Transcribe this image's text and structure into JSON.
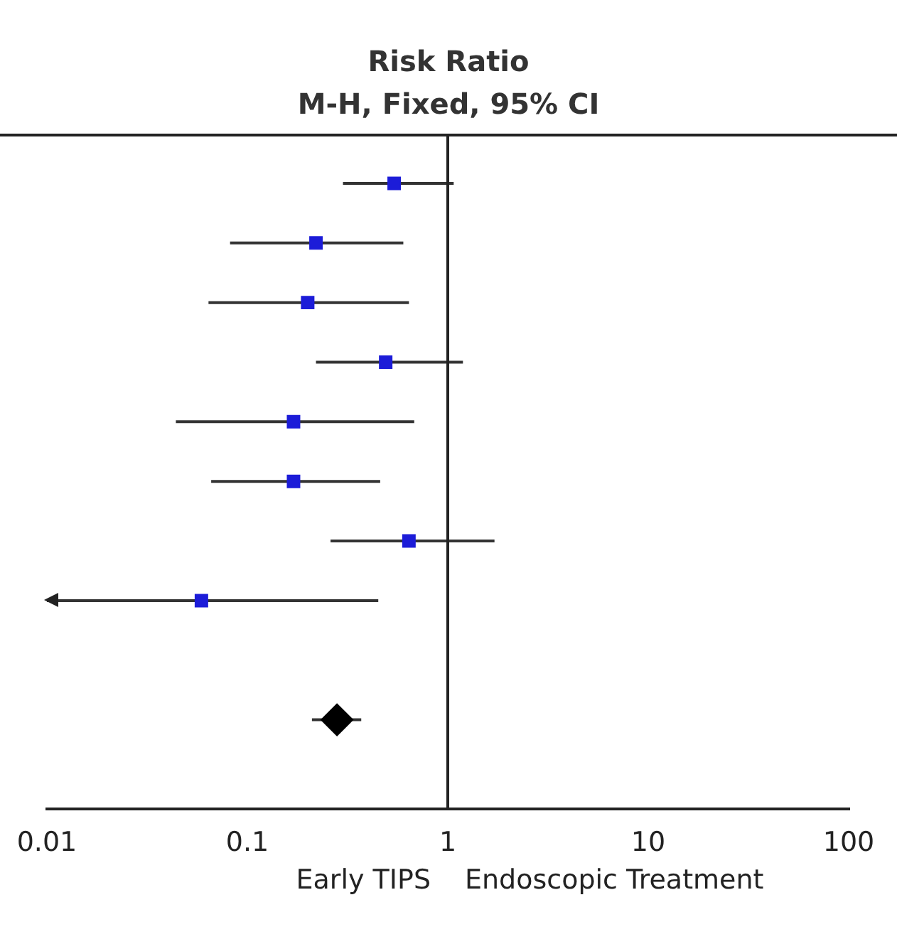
{
  "chart_data": {
    "type": "scatter",
    "title": "Risk Ratio",
    "subtitle": "M-H, Fixed, 95% CI",
    "orientation": "horizontal",
    "categories": [
      null,
      null,
      null,
      null,
      null,
      null,
      null,
      null,
      null,
      null,
      null
    ],
    "series": [
      {
        "color": "#1c1cd8",
        "marker": "square",
        "values": [
          0.54,
          0.22,
          0.2,
          0.49,
          0.17,
          0.17,
          0.64,
          0.059,
          null,
          null,
          null
        ],
        "errors": [
          [
            0.3,
            1.07
          ],
          [
            0.082,
            0.6
          ],
          [
            0.064,
            0.64
          ],
          [
            0.22,
            1.19
          ],
          [
            0.044,
            0.68
          ],
          [
            0.066,
            0.46
          ],
          [
            0.26,
            1.71
          ],
          [
            0.01,
            0.45
          ],
          null,
          null,
          null
        ]
      },
      {
        "color": "#000000",
        "marker": "diamond",
        "values": [
          null,
          null,
          null,
          null,
          null,
          null,
          null,
          null,
          null,
          0.28,
          null
        ],
        "errors": [
          null,
          null,
          null,
          null,
          null,
          null,
          null,
          null,
          null,
          [
            0.21,
            0.37
          ],
          null
        ]
      }
    ],
    "xlim": [
      0.01,
      100
    ],
    "xticks": [
      0.01,
      0.1,
      1,
      10,
      100
    ],
    "log": "x",
    "grid": false,
    "legend": false,
    "tick_labels": "x",
    "ref_lines": [
      {
        "axis": "x",
        "value": 1
      }
    ],
    "annotations": [
      "Early TIPS",
      "Endoscopic Treatment"
    ]
  }
}
